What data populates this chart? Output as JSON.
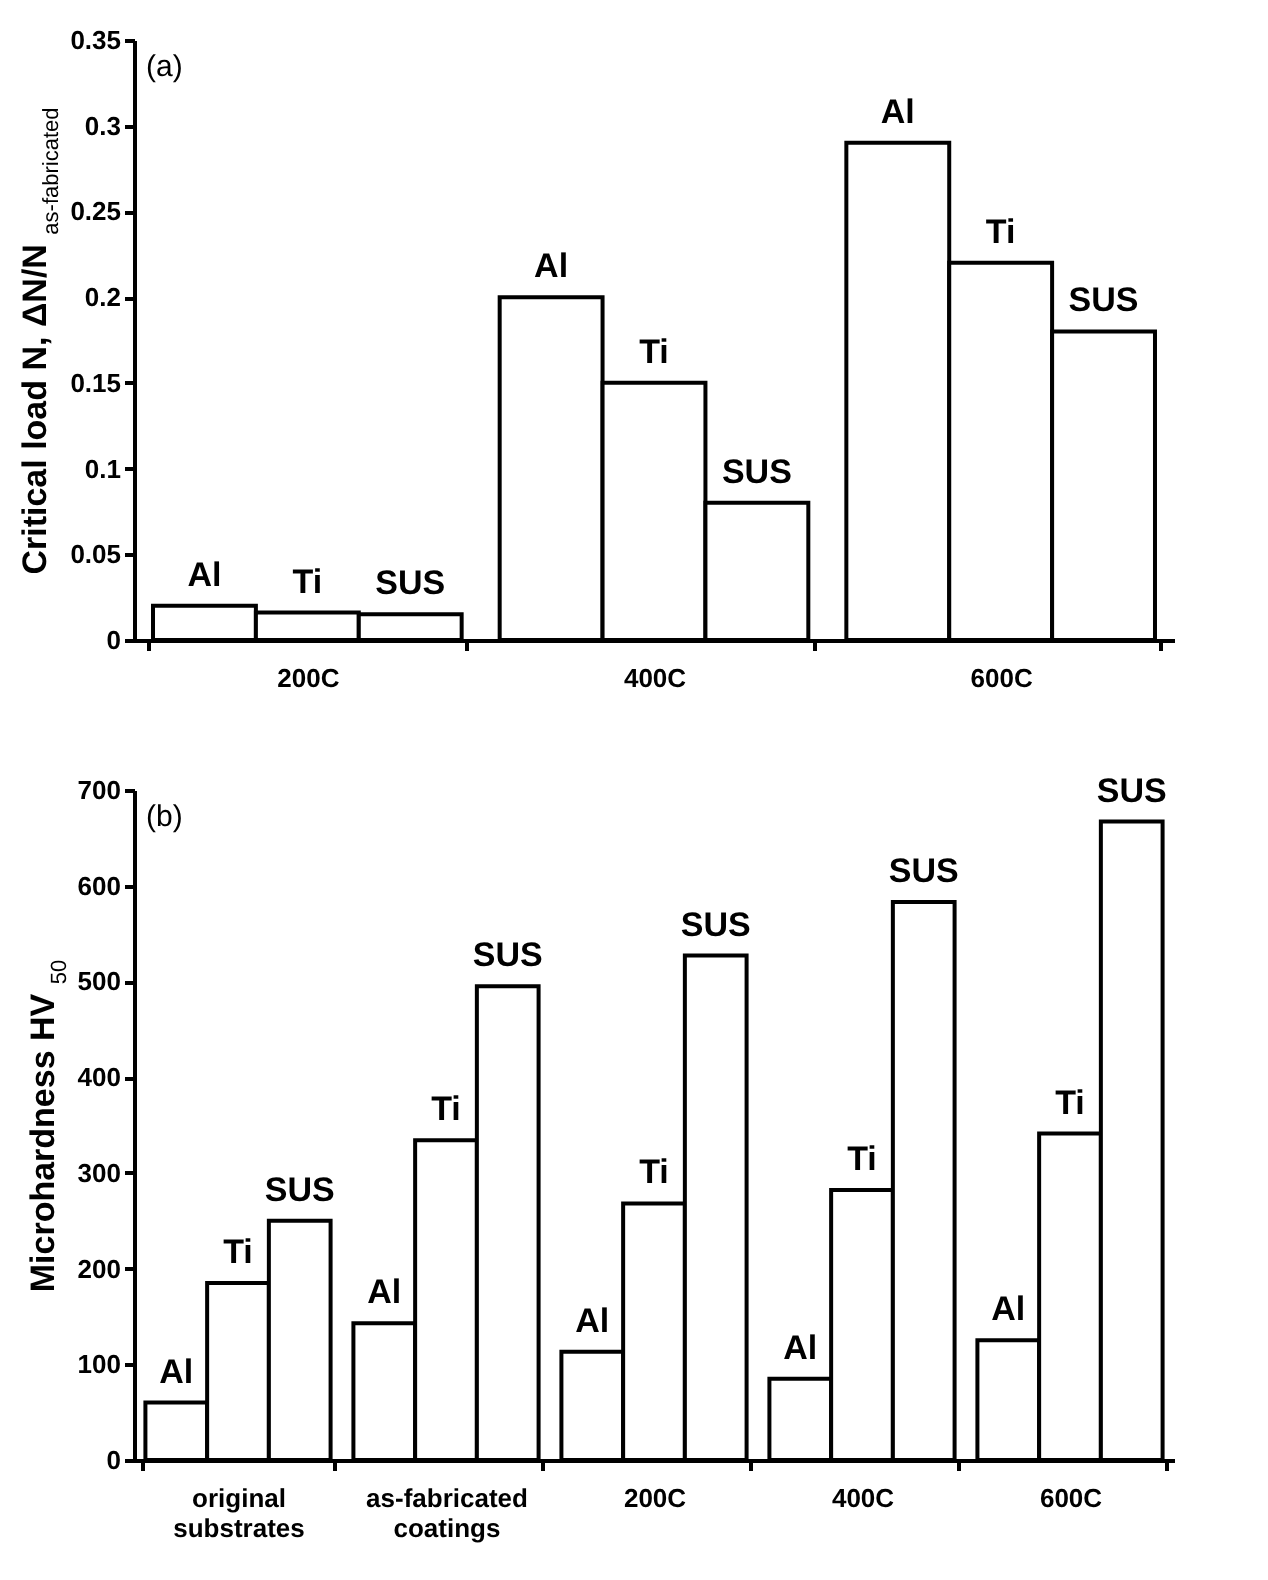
{
  "chart_data": [
    {
      "type": "bar",
      "ylabel": "Critical load N, ΔN/N $_{as-fabricated}$",
      "annotations": [
        "(a)"
      ],
      "categories": [
        "200C",
        "400C",
        "600C"
      ],
      "series": [
        {
          "name": "Al",
          "color": "#ffffff",
          "values": [
            0.02,
            0.2,
            0.29
          ]
        },
        {
          "name": "Ti",
          "color": "#ffffff",
          "values": [
            0.016,
            0.15,
            0.22
          ]
        },
        {
          "name": "SUS",
          "color": "#ffffff",
          "values": [
            0.015,
            0.08,
            0.18
          ]
        }
      ],
      "ylim": [
        0,
        0.35
      ],
      "yticks": [
        0,
        0.05,
        0.1,
        0.15,
        0.2,
        0.25,
        0.3,
        0.35
      ],
      "grid": false,
      "legend": false
    },
    {
      "type": "bar",
      "ylabel": "Microhardness HV $_{50}$",
      "annotations": [
        "(b)"
      ],
      "categories": [
        "original substrates",
        "as-fabricated coatings",
        "200C",
        "400C",
        "600C"
      ],
      "series": [
        {
          "name": "Al",
          "color": "#ffffff",
          "values": [
            60,
            143,
            113,
            85,
            125
          ]
        },
        {
          "name": "Ti",
          "color": "#ffffff",
          "values": [
            185,
            334,
            268,
            282,
            341
          ]
        },
        {
          "name": "SUS",
          "color": "#ffffff",
          "values": [
            250,
            495,
            527,
            583,
            667
          ]
        }
      ],
      "ylim": [
        0,
        700
      ],
      "yticks": [
        0,
        100,
        200,
        300,
        400,
        500,
        600,
        700
      ],
      "grid": false,
      "legend": false
    }
  ]
}
